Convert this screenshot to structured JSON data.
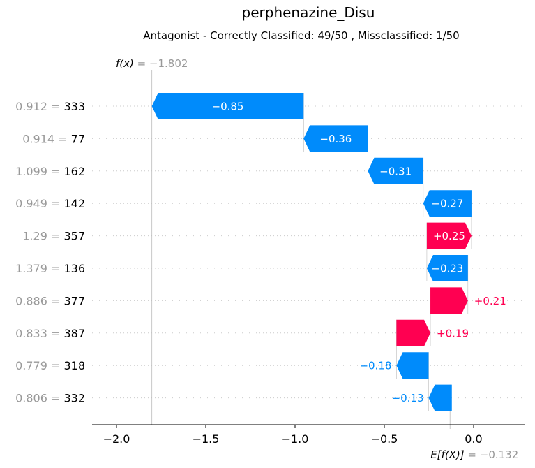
{
  "title": "perphenazine_Disu",
  "subtitle": "Antagonist - Correctly Classified: 49/50 , Missclassified: 1/50",
  "fx_label": "f(x)",
  "fx_value": "= −1.802",
  "efx_label": "E[f(X)]",
  "efx_value": "= −0.132",
  "colors": {
    "positive": "#ff0051",
    "negative": "#008bfb",
    "grey": "#999999"
  },
  "chart_data": {
    "type": "bar",
    "subtype": "waterfall",
    "base_value": -0.132,
    "output_value": -1.802,
    "xlim": [
      -2.1,
      0.28
    ],
    "xticks": [
      -2.0,
      -1.5,
      -1.0,
      -0.5,
      0.0
    ],
    "xtick_labels": [
      "−2.0",
      "−1.5",
      "−1.0",
      "−0.5",
      "0.0"
    ],
    "features": [
      {
        "value": "0.912",
        "name": "333",
        "contribution": -0.85,
        "label": "−0.85"
      },
      {
        "value": "0.914",
        "name": "77",
        "contribution": -0.36,
        "label": "−0.36"
      },
      {
        "value": "1.099",
        "name": "162",
        "contribution": -0.31,
        "label": "−0.31"
      },
      {
        "value": "0.949",
        "name": "142",
        "contribution": -0.27,
        "label": "−0.27"
      },
      {
        "value": "1.29",
        "name": "357",
        "contribution": 0.25,
        "label": "+0.25"
      },
      {
        "value": "1.379",
        "name": "136",
        "contribution": -0.23,
        "label": "−0.23"
      },
      {
        "value": "0.886",
        "name": "377",
        "contribution": 0.21,
        "label": "+0.21"
      },
      {
        "value": "0.833",
        "name": "387",
        "contribution": 0.19,
        "label": "+0.19"
      },
      {
        "value": "0.779",
        "name": "318",
        "contribution": -0.18,
        "label": "−0.18"
      },
      {
        "value": "0.806",
        "name": "332",
        "contribution": -0.13,
        "label": "−0.13"
      }
    ]
  }
}
